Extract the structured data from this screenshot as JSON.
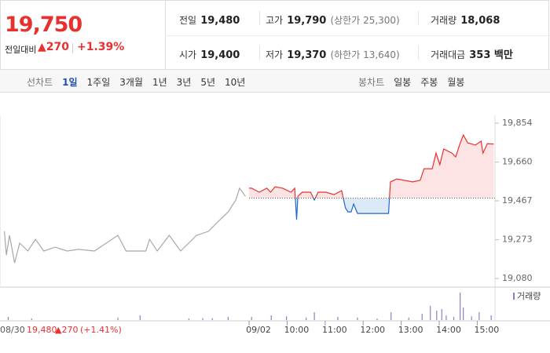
{
  "header": {
    "price": "19,750",
    "change_label": "전일대비",
    "change": "▲270",
    "change_rate": "+1.39%",
    "stats": [
      {
        "label": "전일",
        "value": "19,480"
      },
      {
        "label": "고가",
        "value": "19,790",
        "note": "(상한가 25,300)"
      },
      {
        "label": "거래량",
        "value": "18,068"
      },
      {
        "label": "시가",
        "value": "19,400"
      },
      {
        "label": "저가",
        "value": "19,370",
        "note": "(하한가 13,640)"
      },
      {
        "label": "거래대금",
        "value": "353 백만"
      }
    ]
  },
  "toolbar": {
    "line_label": "선차트",
    "line_periods": [
      "1일",
      "1주일",
      "3개월",
      "1년",
      "3년",
      "5년",
      "10년"
    ],
    "candle_label": "봉차트",
    "candle_periods": [
      "일봉",
      "주봉",
      "월봉"
    ]
  },
  "chart_data": {
    "type": "line",
    "xlim": [
      -3,
      778
    ],
    "ylim": [
      19041,
      19893
    ],
    "xticks": [
      {
        "value": 390,
        "label": "09/02"
      },
      {
        "value": 450,
        "label": "10:00"
      },
      {
        "value": 510,
        "label": "11:00"
      },
      {
        "value": 570,
        "label": "12:00"
      },
      {
        "value": 630,
        "label": "13:00"
      },
      {
        "value": 690,
        "label": "14:00"
      },
      {
        "value": 750,
        "label": "15:00"
      }
    ],
    "yticks": [
      {
        "value": 19080,
        "label": "19,080"
      },
      {
        "value": 19273,
        "label": "19,273"
      },
      {
        "value": 19467,
        "label": "19,467"
      },
      {
        "value": 19660,
        "label": "19,660"
      },
      {
        "value": 19854,
        "label": "19,854"
      }
    ],
    "base": 19480,
    "series": [
      {
        "color": "#a8a8a8",
        "x": [
          4,
          7,
          12,
          20,
          28,
          41,
          53,
          66,
          84,
          103,
          121,
          146,
          183,
          196,
          227,
          233,
          245,
          264,
          282,
          307,
          326,
          338,
          357,
          369,
          375,
          384
        ],
        "values": [
          19315,
          19197,
          19295,
          19158,
          19256,
          19217,
          19275,
          19217,
          19236,
          19217,
          19225,
          19217,
          19295,
          19217,
          19217,
          19275,
          19217,
          19295,
          19217,
          19295,
          19315,
          19354,
          19412,
          19471,
          19530,
          19490
        ]
      },
      {
        "color": "#e8312f",
        "color_below": "#1f66d6",
        "fill": "#fde3e3",
        "fill_below": "#dce9f7",
        "x": [
          390,
          394,
          406,
          418,
          424,
          431,
          443,
          456,
          462,
          465,
          467,
          474,
          487,
          493,
          499,
          511,
          524,
          536,
          542,
          546,
          551,
          555,
          561,
          598,
          610,
          613,
          623,
          635,
          648,
          660,
          666,
          679,
          685,
          691,
          697,
          710,
          716,
          722,
          728,
          735,
          747,
          756,
          759,
          766,
          776
        ],
        "values": [
          19530,
          19530,
          19510,
          19530,
          19510,
          19537,
          19530,
          19510,
          19530,
          19373,
          19490,
          19510,
          19510,
          19471,
          19510,
          19510,
          19498,
          19518,
          19432,
          19412,
          19412,
          19451,
          19404,
          19404,
          19404,
          19561,
          19576,
          19569,
          19561,
          19569,
          19627,
          19627,
          19705,
          19647,
          19725,
          19705,
          19686,
          19745,
          19795,
          19756,
          19745,
          19764,
          19705,
          19752,
          19750
        ]
      }
    ],
    "volume": {
      "name": "거래량",
      "color": "#8a80c8",
      "ylim": [
        0,
        100
      ],
      "x": [
        10,
        47,
        183,
        218,
        295,
        317,
        332,
        357,
        394,
        425,
        449,
        480,
        493,
        530,
        561,
        592,
        614,
        642,
        663,
        676,
        686,
        694,
        701,
        713,
        723,
        728,
        741,
        753,
        772
      ],
      "values": [
        10,
        5,
        8,
        15,
        5,
        6,
        6,
        10,
        10,
        15,
        12,
        8,
        25,
        10,
        8,
        5,
        25,
        8,
        20,
        45,
        30,
        35,
        15,
        10,
        88,
        40,
        12,
        25,
        15
      ]
    }
  },
  "footer": {
    "date": "08/30",
    "price": "19,480",
    "change": "▲270",
    "rate": "(+1.41%)"
  }
}
